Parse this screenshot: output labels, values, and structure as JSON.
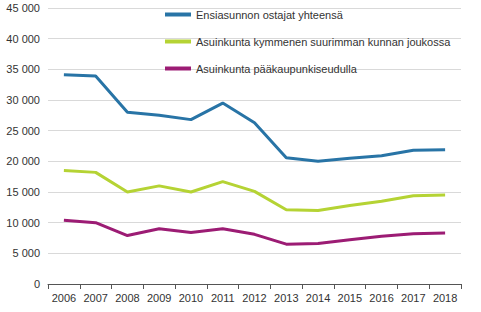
{
  "chart_data": {
    "type": "line",
    "categories": [
      "2006",
      "2007",
      "2008",
      "2009",
      "2010",
      "2011",
      "2012",
      "2013",
      "2014",
      "2015",
      "2016",
      "2017",
      "2018"
    ],
    "series": [
      {
        "name": "Ensiasunnon ostajat yhteensä",
        "color": "#2874a6",
        "values": [
          34100,
          33900,
          28000,
          27500,
          26800,
          29500,
          26300,
          20600,
          20000,
          20500,
          20900,
          21800,
          21900
        ]
      },
      {
        "name": "Asuinkunta kymmenen suurimman kunnan joukossa",
        "color": "#b5d334",
        "values": [
          18500,
          18200,
          15000,
          16000,
          15000,
          16700,
          15100,
          12100,
          12000,
          12800,
          13500,
          14400,
          14500
        ]
      },
      {
        "name": "Asuinkunta pääkaupunkiseudulla",
        "color": "#9c1c74",
        "values": [
          10400,
          10000,
          7900,
          9000,
          8400,
          9000,
          8100,
          6500,
          6600,
          7200,
          7800,
          8200,
          8300
        ]
      }
    ],
    "ylim": [
      0,
      45000
    ],
    "yticks": [
      0,
      {
        "value": 5000,
        "label": "5 000"
      },
      {
        "value": 10000,
        "label": "10 000"
      },
      {
        "value": 15000,
        "label": "15 000"
      },
      {
        "value": 20000,
        "label": "20 000"
      },
      {
        "value": 25000,
        "label": "25 000"
      },
      {
        "value": 30000,
        "label": "30 000"
      },
      {
        "value": 35000,
        "label": "35 000"
      },
      {
        "value": 40000,
        "label": "40 000"
      },
      {
        "value": 45000,
        "label": "45 000"
      }
    ],
    "grid": true,
    "legend": "top"
  }
}
